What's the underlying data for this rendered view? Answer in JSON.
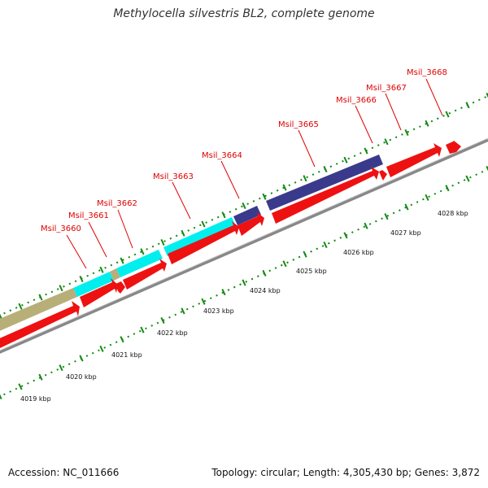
{
  "title": "Methylocella silvestris BL2, complete genome",
  "footer": {
    "accession": "Accession: NC_011666",
    "summary": "Topology: circular; Length: 4,305,430 bp; Genes: 3,872"
  },
  "colors": {
    "cds": "#ee1111",
    "cyan": "#00eeee",
    "khaki": "#b8ae78",
    "navy": "#3a3a8c",
    "backbone": "#999999",
    "tick": "#118811",
    "label": "#e00000"
  },
  "scale_labels": [
    "4019 kbp",
    "4020 kbp",
    "4021 kbp",
    "4022 kbp",
    "4023 kbp",
    "4024 kbp",
    "4025 kbp",
    "4026 kbp",
    "4027 kbp",
    "4028 kbp"
  ],
  "gene_labels": [
    "Msil_3660",
    "Msil_3661",
    "Msil_3662",
    "Msil_3663",
    "Msil_3664",
    "Msil_3665",
    "Msil_3666",
    "Msil_3667",
    "Msil_3668"
  ]
}
